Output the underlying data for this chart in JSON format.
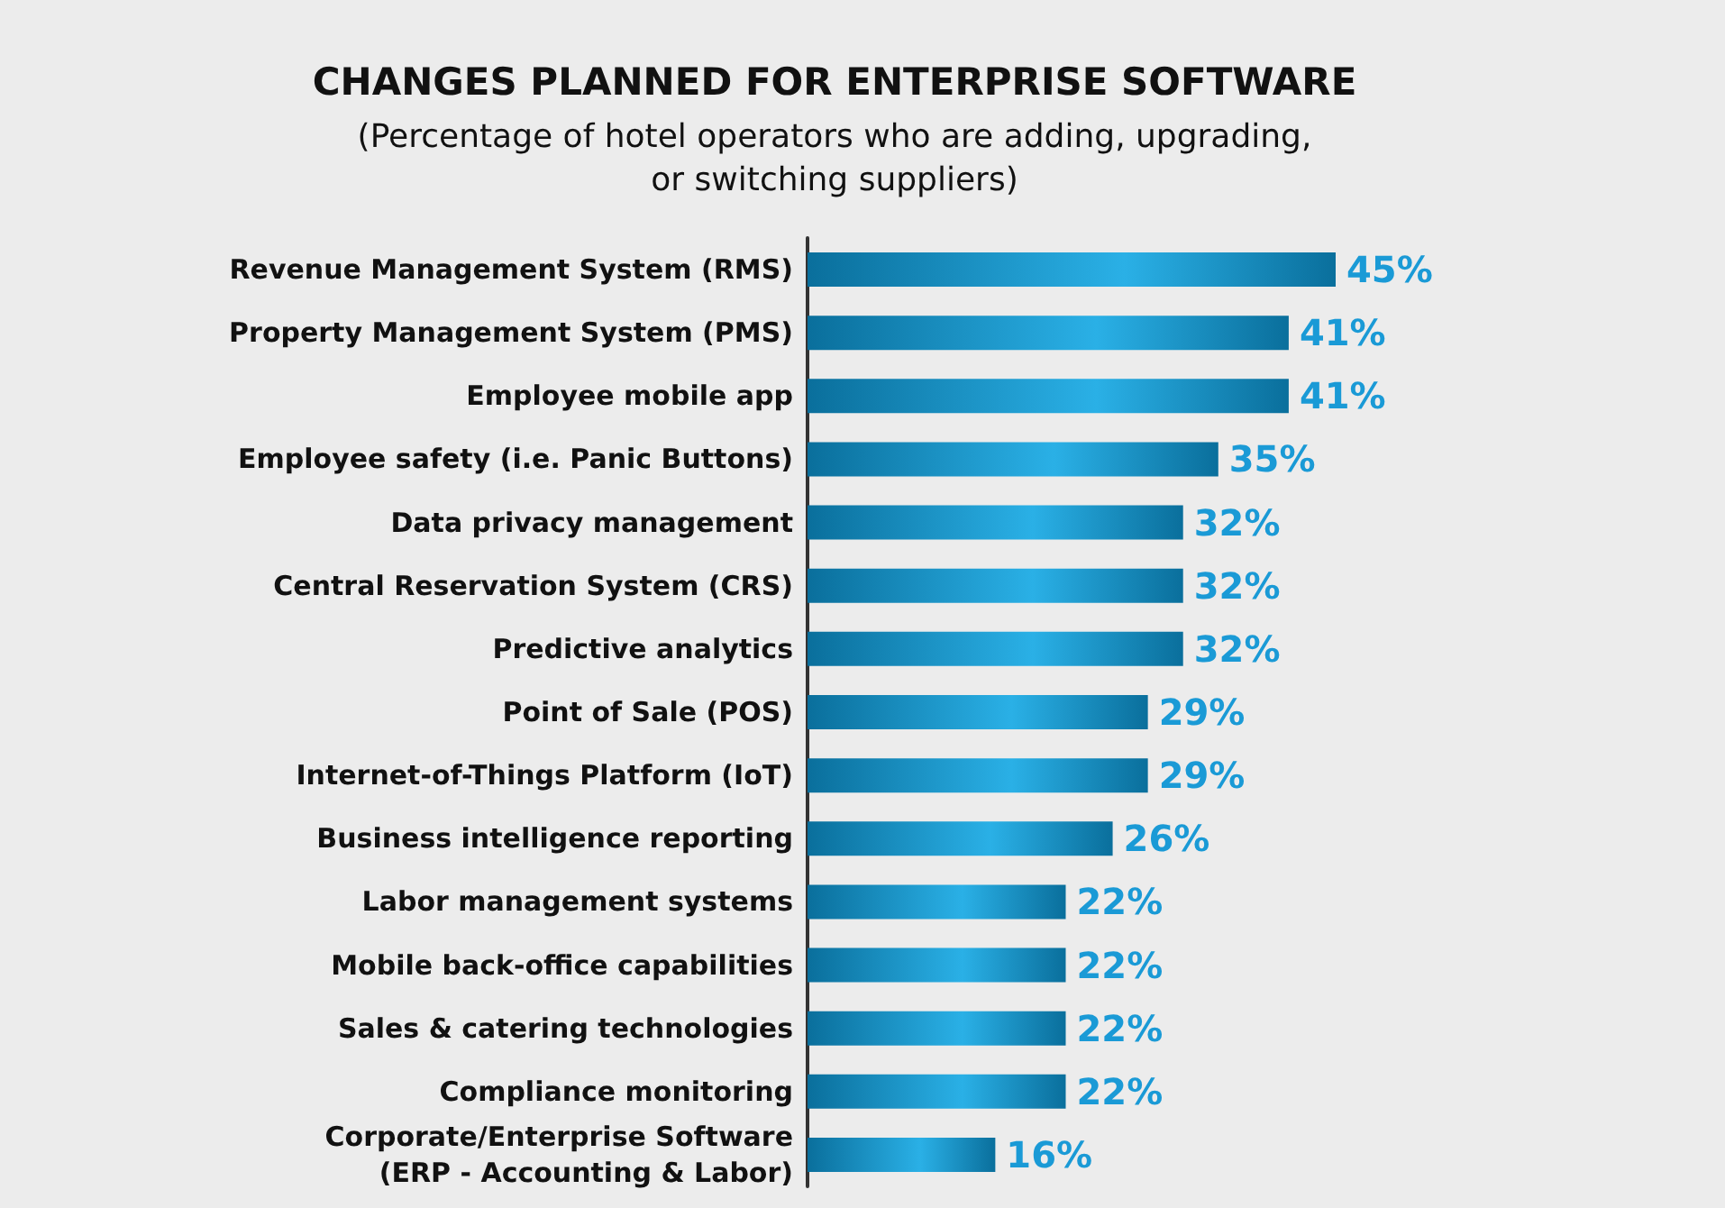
{
  "chart_data": {
    "type": "bar",
    "orientation": "horizontal",
    "title": "CHANGES PLANNED FOR ENTERPRISE SOFTWARE",
    "subtitle": "(Percentage of hotel operators who are adding, upgrading,\nor switching suppliers)",
    "categories": [
      "Revenue Management System (RMS)",
      "Property Management System (PMS)",
      "Employee mobile app",
      "Employee safety (i.e. Panic Buttons)",
      "Data privacy management",
      "Central Reservation System (CRS)",
      "Predictive analytics",
      "Point of Sale (POS)",
      "Internet-of-Things Platform (IoT)",
      "Business intelligence reporting",
      "Labor management systems",
      "Mobile back-office capabilities",
      "Sales & catering technologies",
      "Compliance monitoring",
      "Corporate/Enterprise Software\n(ERP - Accounting & Labor)"
    ],
    "values": [
      45,
      41,
      41,
      35,
      32,
      32,
      32,
      29,
      29,
      26,
      22,
      22,
      22,
      22,
      16
    ],
    "value_labels": [
      "45%",
      "41%",
      "41%",
      "35%",
      "32%",
      "32%",
      "32%",
      "29%",
      "29%",
      "26%",
      "22%",
      "22%",
      "22%",
      "22%",
      "16%"
    ],
    "color": "#0a6f9c"
  }
}
